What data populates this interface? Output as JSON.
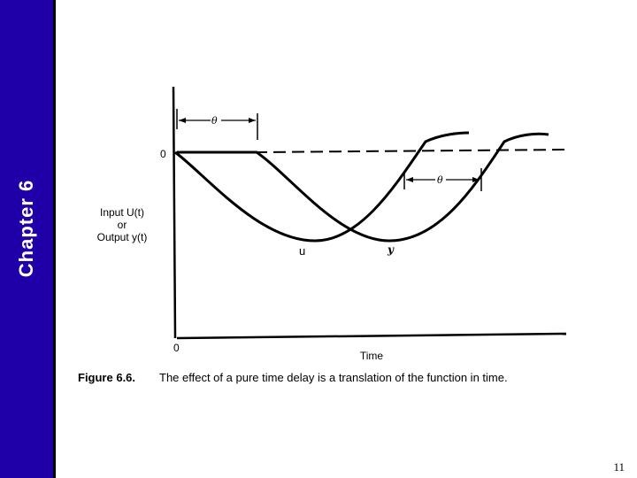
{
  "sidebar": {
    "chapter_label": "Chapter 6",
    "background_color": "#1f00a8"
  },
  "figure": {
    "zero_top_label": "0",
    "zero_origin_label": "0",
    "theta_top_label": "θ",
    "theta_mid_label": "θ",
    "ylabel_line1": "Input U(t)",
    "ylabel_line2": "or",
    "ylabel_line3": "Output y(t)",
    "curve_u_label": "u",
    "curve_y_label": "y",
    "xlabel": "Time",
    "caption_prefix": "Figure 6.6.",
    "caption_text": "The effect of a pure time delay is a translation of the function in time."
  },
  "footer": {
    "page_number": "11"
  }
}
